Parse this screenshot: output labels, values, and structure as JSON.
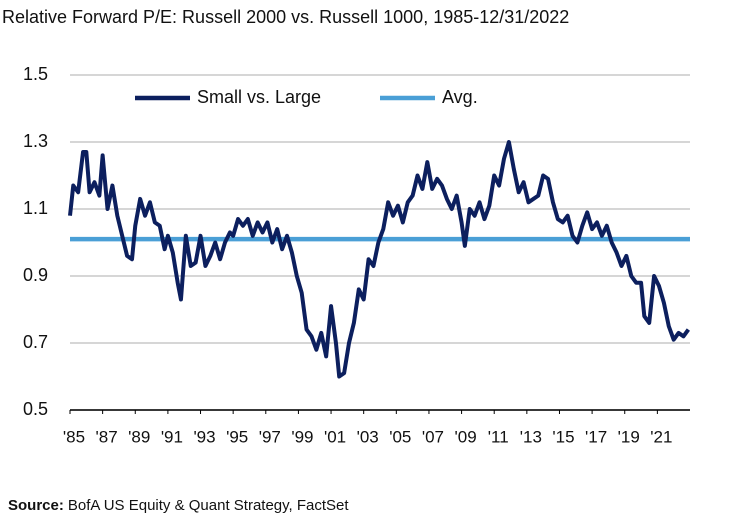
{
  "chart_data": {
    "type": "line",
    "title": "Relative Forward P/E: Russell 2000 vs. Russell 1000, 1985-12/31/2022",
    "source_label": "Source:",
    "source_text": "BofA US Equity & Quant Strategy, FactSet",
    "series": [
      {
        "name": "Small vs. Large",
        "color": "#0c1f5e",
        "x": [
          1985.0,
          1985.2,
          1985.5,
          1985.8,
          1986.0,
          1986.2,
          1986.5,
          1986.8,
          1987.0,
          1987.3,
          1987.6,
          1987.9,
          1988.2,
          1988.5,
          1988.8,
          1989.0,
          1989.3,
          1989.6,
          1989.9,
          1990.2,
          1990.5,
          1990.8,
          1991.0,
          1991.3,
          1991.6,
          1991.8,
          1992.1,
          1992.4,
          1992.7,
          1993.0,
          1993.3,
          1993.6,
          1993.9,
          1994.2,
          1994.5,
          1994.8,
          1995.0,
          1995.3,
          1995.6,
          1995.9,
          1996.2,
          1996.5,
          1996.8,
          1997.1,
          1997.4,
          1997.7,
          1998.0,
          1998.3,
          1998.6,
          1998.9,
          1999.2,
          1999.5,
          1999.8,
          2000.1,
          2000.4,
          2000.7,
          2001.0,
          2001.3,
          2001.5,
          2001.8,
          2002.1,
          2002.4,
          2002.7,
          2003.0,
          2003.3,
          2003.6,
          2003.9,
          2004.2,
          2004.5,
          2004.8,
          2005.1,
          2005.4,
          2005.7,
          2006.0,
          2006.3,
          2006.6,
          2006.9,
          2007.2,
          2007.5,
          2007.8,
          2008.1,
          2008.4,
          2008.7,
          2009.0,
          2009.2,
          2009.5,
          2009.8,
          2010.1,
          2010.4,
          2010.7,
          2011.0,
          2011.3,
          2011.6,
          2011.9,
          2012.2,
          2012.5,
          2012.8,
          2013.1,
          2013.4,
          2013.7,
          2014.0,
          2014.3,
          2014.6,
          2014.9,
          2015.2,
          2015.5,
          2015.8,
          2016.1,
          2016.4,
          2016.7,
          2017.0,
          2017.3,
          2017.6,
          2017.9,
          2018.2,
          2018.5,
          2018.8,
          2019.1,
          2019.4,
          2019.7,
          2020.0,
          2020.2,
          2020.5,
          2020.8,
          2021.1,
          2021.4,
          2021.7,
          2022.0,
          2022.3,
          2022.6,
          2022.9
        ],
        "values": [
          1.08,
          1.17,
          1.15,
          1.27,
          1.27,
          1.15,
          1.18,
          1.14,
          1.26,
          1.1,
          1.17,
          1.08,
          1.02,
          0.96,
          0.95,
          1.05,
          1.13,
          1.08,
          1.12,
          1.06,
          1.05,
          0.98,
          1.02,
          0.97,
          0.88,
          0.83,
          1.02,
          0.93,
          0.94,
          1.02,
          0.93,
          0.96,
          1.0,
          0.95,
          1.0,
          1.03,
          1.02,
          1.07,
          1.05,
          1.07,
          1.02,
          1.06,
          1.03,
          1.06,
          1.0,
          1.04,
          0.98,
          1.02,
          0.97,
          0.9,
          0.85,
          0.74,
          0.72,
          0.68,
          0.73,
          0.66,
          0.81,
          0.7,
          0.6,
          0.61,
          0.7,
          0.76,
          0.86,
          0.83,
          0.95,
          0.93,
          1.0,
          1.04,
          1.12,
          1.08,
          1.11,
          1.06,
          1.12,
          1.14,
          1.2,
          1.16,
          1.24,
          1.16,
          1.19,
          1.17,
          1.13,
          1.1,
          1.14,
          1.06,
          0.99,
          1.1,
          1.08,
          1.12,
          1.07,
          1.11,
          1.2,
          1.17,
          1.25,
          1.3,
          1.22,
          1.15,
          1.18,
          1.12,
          1.13,
          1.14,
          1.2,
          1.19,
          1.12,
          1.07,
          1.06,
          1.08,
          1.02,
          1.0,
          1.05,
          1.09,
          1.04,
          1.06,
          1.02,
          1.05,
          1.0,
          0.97,
          0.93,
          0.96,
          0.9,
          0.88,
          0.88,
          0.78,
          0.76,
          0.9,
          0.87,
          0.82,
          0.75,
          0.71,
          0.73,
          0.72,
          0.74
        ]
      },
      {
        "name": "Avg.",
        "color": "#4a9fd6",
        "x": [
          1985,
          2023
        ],
        "values": [
          1.01,
          1.01
        ]
      }
    ],
    "xlim": [
      1985,
      2023
    ],
    "xticks": [
      {
        "value": 1985,
        "label": "'85"
      },
      {
        "value": 1987,
        "label": "'87"
      },
      {
        "value": 1989,
        "label": "'89"
      },
      {
        "value": 1991,
        "label": "'91"
      },
      {
        "value": 1993,
        "label": "'93"
      },
      {
        "value": 1995,
        "label": "'95"
      },
      {
        "value": 1997,
        "label": "'97"
      },
      {
        "value": 1999,
        "label": "'99"
      },
      {
        "value": 2001,
        "label": "'01"
      },
      {
        "value": 2003,
        "label": "'03"
      },
      {
        "value": 2005,
        "label": "'05"
      },
      {
        "value": 2007,
        "label": "'07"
      },
      {
        "value": 2009,
        "label": "'09"
      },
      {
        "value": 2011,
        "label": "'11"
      },
      {
        "value": 2013,
        "label": "'13"
      },
      {
        "value": 2015,
        "label": "'15"
      },
      {
        "value": 2017,
        "label": "'17"
      },
      {
        "value": 2019,
        "label": "'19"
      },
      {
        "value": 2021,
        "label": "'21"
      }
    ],
    "ylim": [
      0.5,
      1.5
    ],
    "yticks": [
      {
        "value": 0.5,
        "label": "0.5"
      },
      {
        "value": 0.7,
        "label": "0.7"
      },
      {
        "value": 0.9,
        "label": "0.9"
      },
      {
        "value": 1.1,
        "label": "1.1"
      },
      {
        "value": 1.3,
        "label": "1.3"
      },
      {
        "value": 1.5,
        "label": "1.5"
      }
    ],
    "grid": true
  }
}
